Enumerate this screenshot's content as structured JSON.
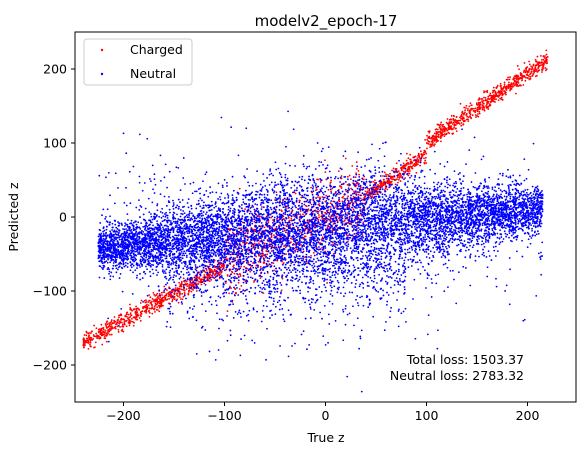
{
  "chart_data": {
    "type": "scatter",
    "title": "modelv2_epoch-17",
    "xlabel": "True z",
    "ylabel": "Predicted z",
    "xlim": [
      -248,
      248
    ],
    "ylim": [
      -250,
      250
    ],
    "xticks": [
      -200,
      -100,
      0,
      100,
      200
    ],
    "yticks": [
      -200,
      -100,
      0,
      100,
      200
    ],
    "xtick_labels": [
      "−200",
      "−100",
      "0",
      "100",
      "200"
    ],
    "ytick_labels": [
      "−200",
      "−100",
      "0",
      "100",
      "200"
    ],
    "grid": false,
    "legend_position": "upper-left",
    "series": [
      {
        "name": "Charged",
        "color": "#ff0000",
        "marker": "small-dot",
        "description_points": [
          [
            -240,
            -150
          ],
          [
            -215,
            -140
          ],
          [
            -200,
            -133
          ],
          [
            -190,
            -122
          ],
          [
            -180,
            -115
          ],
          [
            -170,
            -107
          ],
          [
            -160,
            -95
          ],
          [
            -150,
            -88
          ],
          [
            -140,
            -80
          ],
          [
            -120,
            -70
          ],
          [
            -100,
            -60
          ],
          [
            -80,
            -50
          ],
          [
            -60,
            -38
          ],
          [
            -40,
            -25
          ],
          [
            -20,
            -12
          ],
          [
            0,
            5
          ],
          [
            20,
            20
          ],
          [
            40,
            35
          ],
          [
            60,
            55
          ],
          [
            80,
            72
          ],
          [
            100,
            95
          ],
          [
            120,
            115
          ],
          [
            140,
            130
          ],
          [
            160,
            150
          ],
          [
            180,
            170
          ],
          [
            200,
            190
          ],
          [
            215,
            210
          ]
        ]
      },
      {
        "name": "Neutral",
        "color": "#0000ff",
        "marker": "small-dot"
      }
    ],
    "annotations": [
      "Total loss: 1503.37",
      "Neutral loss: 2783.32"
    ]
  }
}
